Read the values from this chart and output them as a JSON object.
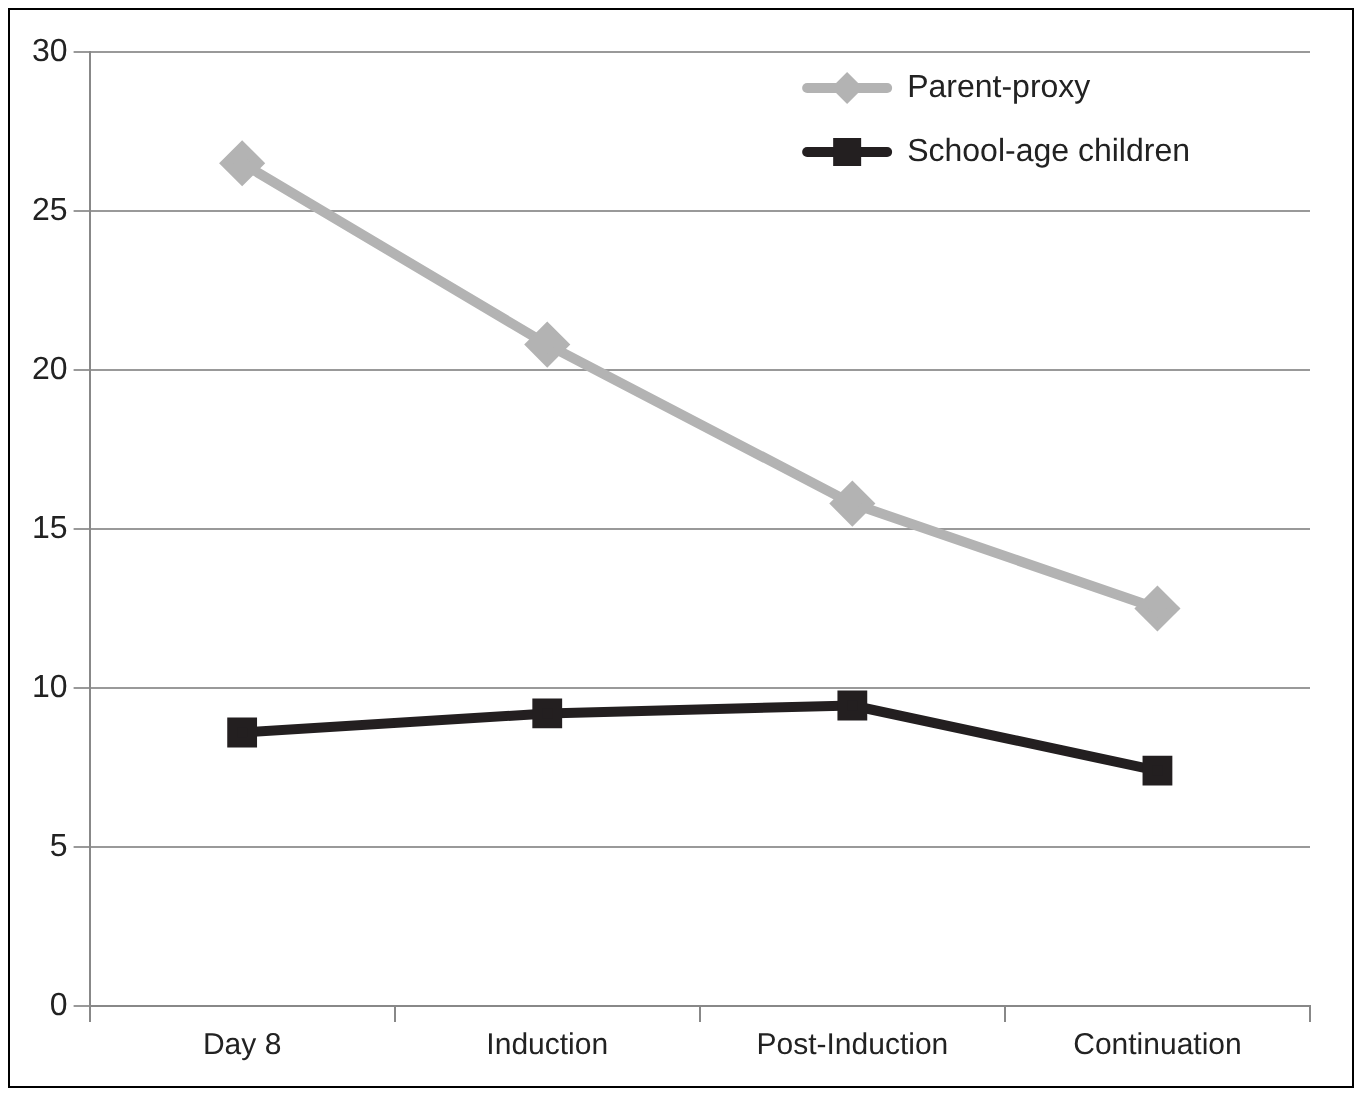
{
  "chart_data": {
    "type": "line",
    "categories": [
      "Day 8",
      "Induction",
      "Post-Induction",
      "Continuation"
    ],
    "series": [
      {
        "name": "Parent-proxy",
        "color": "#b3b3b3",
        "marker": "diamond",
        "values": [
          26.5,
          20.8,
          15.8,
          12.5
        ]
      },
      {
        "name": "School-age children",
        "color": "#231f20",
        "marker": "square",
        "values": [
          8.6,
          9.2,
          9.45,
          7.4
        ]
      }
    ],
    "ylim": [
      0,
      30
    ],
    "yticks": [
      0,
      5,
      10,
      15,
      20,
      25,
      30
    ],
    "grid": "y",
    "legend": "top right"
  }
}
